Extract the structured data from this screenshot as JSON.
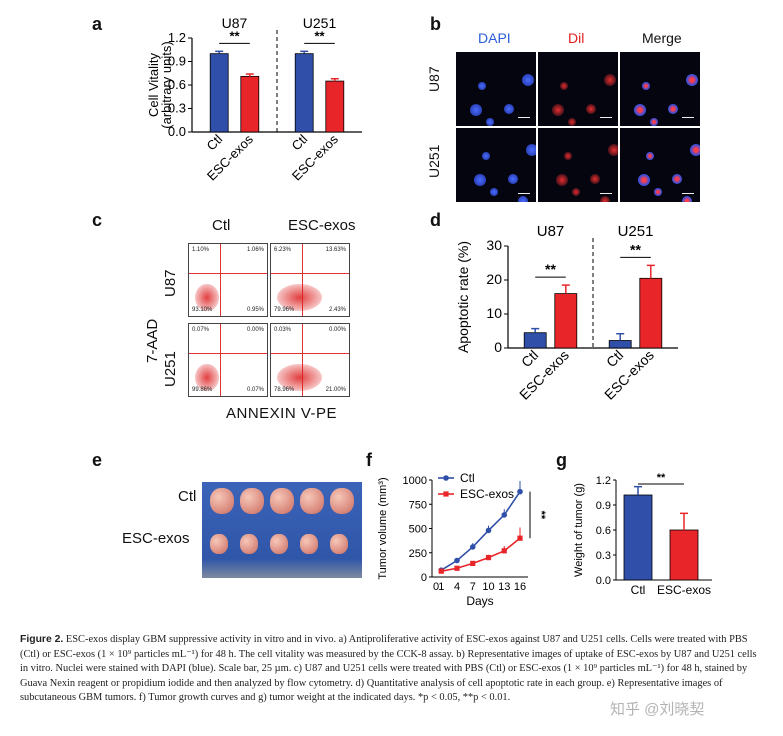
{
  "panels": {
    "a": {
      "letter": "a",
      "groups": [
        "U87",
        "U251"
      ],
      "ylabel_line1": "Cell Vitality",
      "ylabel_line2": "(arbitrary units)",
      "significance": "**",
      "categories": [
        "Ctl",
        "ESC-exos"
      ]
    },
    "b": {
      "letter": "b",
      "columns": [
        "DAPI",
        "Dil",
        "Merge"
      ],
      "rows": [
        "U87",
        "U251"
      ]
    },
    "c": {
      "letter": "c",
      "columns": [
        "Ctl",
        "ESC-exos"
      ],
      "rows": [
        "U87",
        "U251"
      ],
      "ylabel": "7-AAD",
      "xlabel": "ANNEXIN V-PE",
      "quadrants": [
        [
          "1.10%",
          "1.06%",
          "93.10%",
          "0.95%"
        ],
        [
          "6.23%",
          "13.63%",
          "79.96%",
          "2.43%"
        ],
        [
          "0.07%",
          "0.00%",
          "99.86%",
          "0.07%"
        ],
        [
          "0.03%",
          "0.00%",
          "78.96%",
          "21.00%"
        ]
      ]
    },
    "d": {
      "letter": "d",
      "groups": [
        "U87",
        "U251"
      ],
      "ylabel": "Apoptotic rate (%)",
      "significance": "**",
      "categories": [
        "Ctl",
        "ESC-exos"
      ]
    },
    "e": {
      "letter": "e",
      "rows": [
        "Ctl",
        "ESC-exos"
      ]
    },
    "f": {
      "letter": "f",
      "ylabel": "Tumor volume (mm³)",
      "xlabel": "Days",
      "legend": [
        "Ctl",
        "ESC-exos"
      ],
      "significance": "**"
    },
    "g": {
      "letter": "g",
      "ylabel": "Weight of tumor (g)",
      "significance": "**",
      "categories": [
        "Ctl",
        "ESC-exos"
      ]
    }
  },
  "colors": {
    "ctl": "#2f4fa8",
    "exos": "#e8262a"
  },
  "caption": {
    "label": "Figure 2.",
    "text": "ESC-exos display GBM suppressive activity in vitro and in vivo. a) Antiproliferative activity of ESC-exos against U87 and U251 cells. Cells were treated with PBS (Ctl) or ESC-exos (1 × 10⁹ particles mL⁻¹) for 48 h. The cell vitality was measured by the CCK-8 assay. b) Representative images of uptake of ESC-exos by U87 and U251 cells in vitro. Nuclei were stained with DAPI (blue). Scale bar, 25 µm. c) U87 and U251 cells were treated with PBS (Ctl) or ESC-exos (1 × 10⁹ particles mL⁻¹) for 48 h, stained by Guava Nexin reagent or propidium iodide and then analyzed by flow cytometry. d) Quantitative analysis of cell apoptotic rate in each group. e) Representative images of subcutaneous GBM tumors. f) Tumor growth curves and g) tumor weight at the indicated days. *p < 0.05, **p < 0.01."
  },
  "watermark": "知乎 @刘晓契",
  "chart_data": [
    {
      "id": "a",
      "type": "bar",
      "groups": [
        "U87",
        "U251"
      ],
      "categories": [
        "Ctl",
        "ESC-exos"
      ],
      "series": [
        {
          "name": "U87",
          "values": [
            1.0,
            0.71
          ],
          "errors": [
            0.03,
            0.03
          ]
        },
        {
          "name": "U251",
          "values": [
            1.0,
            0.65
          ],
          "errors": [
            0.03,
            0.03
          ]
        }
      ],
      "ylim": [
        0,
        1.2
      ],
      "yticks": [
        "0.0",
        "0.3",
        "0.6",
        "0.9",
        "1.2"
      ]
    },
    {
      "id": "d",
      "type": "bar",
      "groups": [
        "U87",
        "U251"
      ],
      "categories": [
        "Ctl",
        "ESC-exos"
      ],
      "series": [
        {
          "name": "U87",
          "values": [
            4.5,
            16
          ],
          "errors": [
            1.2,
            2.5
          ]
        },
        {
          "name": "U251",
          "values": [
            2.2,
            20.5
          ],
          "errors": [
            2,
            3.8
          ]
        }
      ],
      "ylim": [
        0,
        30
      ],
      "yticks": [
        "0",
        "10",
        "20",
        "30"
      ]
    },
    {
      "id": "f",
      "type": "line",
      "x": [
        1,
        4,
        7,
        10,
        13,
        16
      ],
      "xticks": [
        "0",
        "1",
        "4",
        "7",
        "10",
        "13",
        "16"
      ],
      "series": [
        {
          "name": "Ctl",
          "values": [
            70,
            170,
            310,
            480,
            640,
            880
          ],
          "errors": [
            15,
            25,
            40,
            50,
            60,
            110
          ]
        },
        {
          "name": "ESC-exos",
          "values": [
            60,
            90,
            140,
            200,
            270,
            400
          ],
          "errors": [
            10,
            15,
            20,
            30,
            50,
            110
          ]
        }
      ],
      "ylim": [
        0,
        1000
      ],
      "yticks": [
        "0",
        "250",
        "500",
        "750",
        "1000"
      ]
    },
    {
      "id": "g",
      "type": "bar",
      "categories": [
        "Ctl",
        "ESC-exos"
      ],
      "values": [
        1.02,
        0.6
      ],
      "errors": [
        0.1,
        0.2
      ],
      "ylim": [
        0,
        1.2
      ],
      "yticks": [
        "0.0",
        "0.3",
        "0.6",
        "0.9",
        "1.2"
      ]
    }
  ]
}
